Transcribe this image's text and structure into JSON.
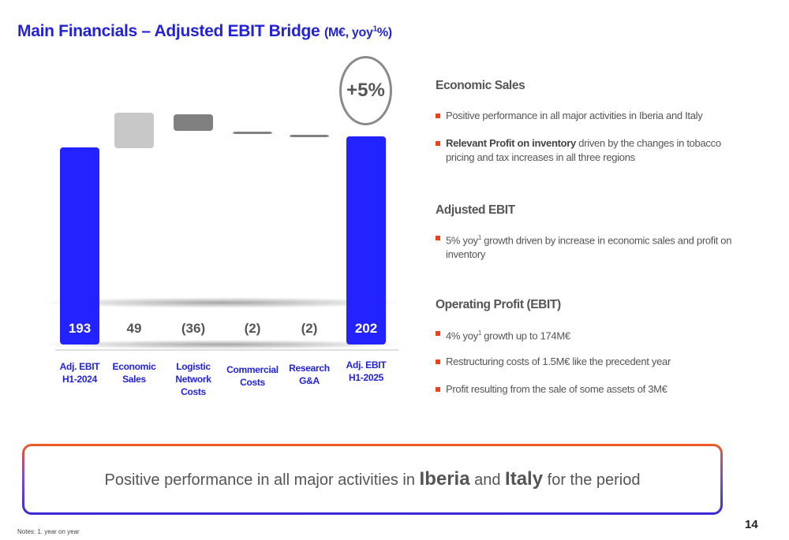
{
  "title": {
    "main": "Main Financials – Adjusted EBIT Bridge",
    "unit_prefix": "(M€, yoy",
    "unit_sup": "1",
    "unit_suffix": "%)"
  },
  "chart_data": {
    "type": "bar",
    "subtype": "waterfall",
    "categories": [
      "Adj. EBIT H1-2024",
      "Economic Sales",
      "Logistic Network Costs",
      "Commercial Costs",
      "Research G&A",
      "Adj. EBIT H1-2025"
    ],
    "category_lines": [
      [
        "Adj. EBIT",
        "H1-2024"
      ],
      [
        "Economic",
        "Sales"
      ],
      [
        "Logistic",
        "Network",
        "Costs"
      ],
      [
        "Commercial",
        "Costs"
      ],
      [
        "Research",
        "G&A"
      ],
      [
        "Adj. EBIT",
        "H1-2025"
      ]
    ],
    "values": [
      193,
      49,
      -36,
      -2,
      -2,
      202
    ],
    "value_labels": [
      "193",
      "49",
      "(36)",
      "(2)",
      "(2)",
      "202"
    ],
    "bar_kinds": [
      "total",
      "delta",
      "delta",
      "delta",
      "delta",
      "total"
    ],
    "badge": "+5%",
    "colors": {
      "total": "#2323ff",
      "increase": "#c8c8c8",
      "decrease": "#808080",
      "label_dark": "#555555",
      "label_light": "#ffffff"
    }
  },
  "sections": [
    {
      "title": "Economic Sales",
      "bullets": [
        {
          "bold": "",
          "text": "Positive performance in all major activities in Iberia and Italy"
        },
        {
          "bold": "Relevant Profit on inventory",
          "text": " driven by the changes in tobacco pricing and tax increases in all three regions"
        }
      ]
    },
    {
      "title": "Adjusted EBIT",
      "bullets": [
        {
          "bold": "",
          "text": "5% yoy",
          "sup": "1",
          "text2": " growth driven by increase in economic sales and profit on inventory"
        }
      ]
    },
    {
      "title": "Operating Profit (EBIT)",
      "bullets": [
        {
          "bold": "",
          "text": "4% yoy",
          "sup": "1",
          "text2": " growth up to 174M€"
        },
        {
          "bold": "",
          "text": "Restructuring costs of 1.5M€ like the precedent year"
        },
        {
          "bold": "",
          "text": "Profit resulting from the sale of some assets of 3M€"
        }
      ]
    }
  ],
  "callout": {
    "pre": "Positive performance in all major activities in ",
    "b1": "Iberia",
    "mid": " and ",
    "b2": "Italy",
    "post": " for the period"
  },
  "notes": "Notes: 1. year on year",
  "page_number": "14",
  "colors": {
    "title": "#2323d6",
    "bullet": "#e8431c",
    "callout_top": "#f05a23",
    "callout_bottom": "#3a28d8"
  }
}
